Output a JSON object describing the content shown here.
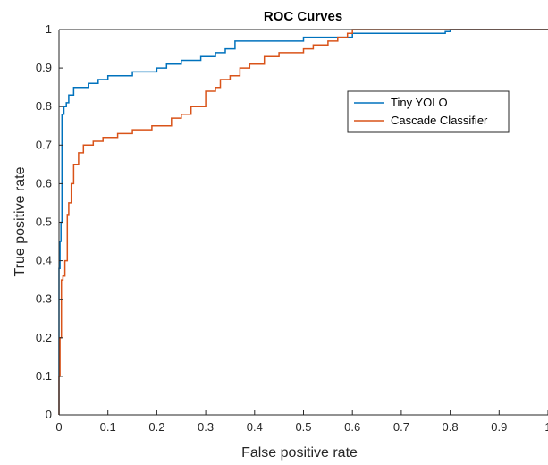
{
  "chart_data": {
    "type": "line",
    "title": "ROC Curves",
    "xlabel": "False positive rate",
    "ylabel": "True positive rate",
    "xlim": [
      0,
      1
    ],
    "ylim": [
      0,
      1
    ],
    "x_ticks": [
      "0",
      "0.1",
      "0.2",
      "0.3",
      "0.4",
      "0.5",
      "0.6",
      "0.7",
      "0.8",
      "0.9",
      "1"
    ],
    "y_ticks": [
      "0",
      "0.1",
      "0.2",
      "0.3",
      "0.4",
      "0.5",
      "0.6",
      "0.7",
      "0.8",
      "0.9",
      "1"
    ],
    "grid": false,
    "legend_position": "top-right",
    "series": [
      {
        "name": "Tiny YOLO",
        "color": "#0072BD",
        "x": [
          0,
          0,
          0.002,
          0.002,
          0.004,
          0.004,
          0.006,
          0.006,
          0.01,
          0.01,
          0.015,
          0.015,
          0.02,
          0.02,
          0.03,
          0.03,
          0.06,
          0.06,
          0.08,
          0.08,
          0.1,
          0.1,
          0.15,
          0.15,
          0.2,
          0.2,
          0.22,
          0.22,
          0.25,
          0.25,
          0.29,
          0.29,
          0.32,
          0.32,
          0.34,
          0.34,
          0.36,
          0.36,
          0.5,
          0.5,
          0.6,
          0.6,
          0.7,
          0.7,
          0.79,
          0.79,
          0.8,
          0.8,
          1
        ],
        "y": [
          0,
          0.38,
          0.38,
          0.45,
          0.45,
          0.5,
          0.5,
          0.78,
          0.78,
          0.8,
          0.8,
          0.81,
          0.81,
          0.83,
          0.83,
          0.85,
          0.85,
          0.86,
          0.86,
          0.87,
          0.87,
          0.88,
          0.88,
          0.89,
          0.89,
          0.9,
          0.9,
          0.91,
          0.91,
          0.92,
          0.92,
          0.93,
          0.93,
          0.94,
          0.94,
          0.95,
          0.95,
          0.97,
          0.97,
          0.98,
          0.98,
          0.99,
          0.99,
          0.99,
          0.99,
          0.995,
          0.995,
          1,
          1
        ]
      },
      {
        "name": "Cascade Classifier",
        "color": "#D95319",
        "x": [
          0,
          0,
          0.002,
          0.002,
          0.005,
          0.005,
          0.008,
          0.008,
          0.012,
          0.012,
          0.017,
          0.017,
          0.02,
          0.02,
          0.025,
          0.025,
          0.03,
          0.03,
          0.04,
          0.04,
          0.05,
          0.05,
          0.07,
          0.07,
          0.09,
          0.09,
          0.12,
          0.12,
          0.15,
          0.15,
          0.19,
          0.19,
          0.23,
          0.23,
          0.25,
          0.25,
          0.27,
          0.27,
          0.3,
          0.3,
          0.32,
          0.32,
          0.33,
          0.33,
          0.35,
          0.35,
          0.37,
          0.37,
          0.39,
          0.39,
          0.42,
          0.42,
          0.45,
          0.45,
          0.5,
          0.5,
          0.52,
          0.52,
          0.55,
          0.55,
          0.57,
          0.57,
          0.59,
          0.59,
          0.6,
          0.6,
          1
        ],
        "y": [
          0,
          0.1,
          0.1,
          0.2,
          0.2,
          0.35,
          0.35,
          0.36,
          0.36,
          0.4,
          0.4,
          0.52,
          0.52,
          0.55,
          0.55,
          0.6,
          0.6,
          0.65,
          0.65,
          0.68,
          0.68,
          0.7,
          0.7,
          0.71,
          0.71,
          0.72,
          0.72,
          0.73,
          0.73,
          0.74,
          0.74,
          0.75,
          0.75,
          0.77,
          0.77,
          0.78,
          0.78,
          0.8,
          0.8,
          0.84,
          0.84,
          0.85,
          0.85,
          0.87,
          0.87,
          0.88,
          0.88,
          0.9,
          0.9,
          0.91,
          0.91,
          0.93,
          0.93,
          0.94,
          0.94,
          0.95,
          0.95,
          0.96,
          0.96,
          0.97,
          0.97,
          0.98,
          0.98,
          0.99,
          0.99,
          1,
          1
        ]
      }
    ]
  }
}
